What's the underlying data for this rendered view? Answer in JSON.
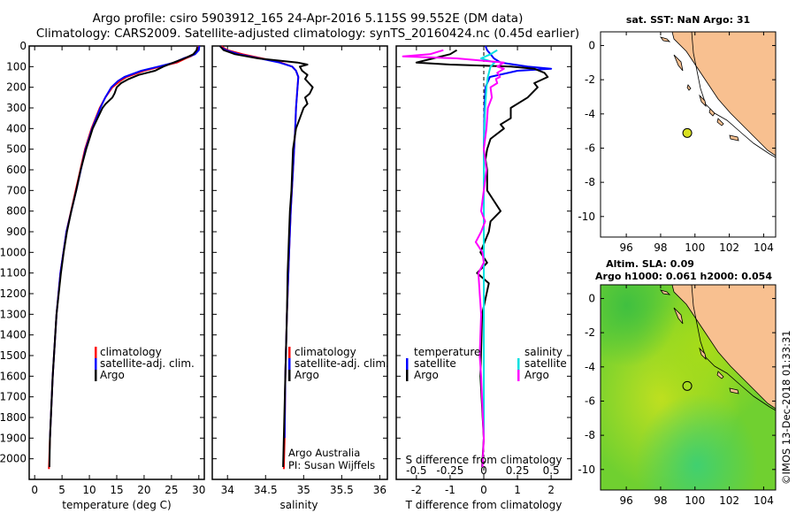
{
  "header": {
    "line1": "Argo profile: csiro 5903912_165 24-Apr-2016 5.115S 99.552E (DM data)",
    "line2": "Climatology: CARS2009. Satellite-adjusted climatology: synTS_20160424.nc (0.45d earlier)"
  },
  "depth_ticks": [
    "0",
    "100",
    "200",
    "300",
    "400",
    "500",
    "600",
    "700",
    "800",
    "900",
    "1000",
    "1100",
    "1200",
    "1300",
    "1400",
    "1500",
    "1600",
    "1700",
    "1800",
    "1900",
    "2000"
  ],
  "legend": {
    "climatology": "climatology",
    "satellite_adj": "satellite-adj. clim.",
    "argo": "Argo",
    "temperature": "temperature",
    "salinity": "salinity",
    "satellite": "satellite"
  },
  "credits": {
    "line1": "Argo Australia",
    "line2": "PI: Susan Wijffels"
  },
  "colors": {
    "climatology": "#ff0000",
    "satellite": "#0000ff",
    "argo": "#000000",
    "sal_sat": "#00e0e0",
    "sal_argo": "#ff00ff",
    "land": "#f8c090",
    "marker": "#d8e020"
  },
  "chart_data": [
    {
      "type": "line",
      "title": "",
      "xlabel": "temperature (deg C)",
      "ylabel": "",
      "xticks": [
        "0",
        "5",
        "10",
        "15",
        "20",
        "25",
        "30"
      ],
      "xlim": [
        -1,
        31
      ],
      "ylim": [
        2100,
        0
      ],
      "series": [
        {
          "name": "climatology",
          "depth": [
            2050,
            1900,
            1600,
            1300,
            1100,
            900,
            700,
            500,
            400,
            300,
            250,
            200,
            170,
            150,
            120,
            100,
            80,
            60,
            50,
            40,
            20,
            0
          ],
          "values": [
            2.6,
            2.8,
            3.3,
            4.0,
            4.7,
            5.8,
            7.5,
            9.2,
            10.4,
            11.9,
            12.9,
            14.2,
            15.6,
            16.8,
            20.0,
            23.0,
            26.0,
            27.6,
            28.5,
            29.2,
            29.8,
            30.0
          ]
        },
        {
          "name": "satellite-adj. clim.",
          "depth": [
            1900,
            1600,
            1300,
            1100,
            900,
            700,
            500,
            400,
            300,
            250,
            200,
            170,
            150,
            120,
            100,
            80,
            60,
            50,
            40,
            20,
            0
          ],
          "values": [
            2.8,
            3.3,
            4.0,
            4.7,
            5.8,
            7.6,
            9.3,
            10.5,
            12.0,
            12.9,
            14.0,
            15.2,
            16.4,
            19.5,
            22.6,
            25.5,
            27.2,
            28.3,
            29.3,
            30.0,
            30.1
          ]
        },
        {
          "name": "Argo",
          "depth": [
            2040,
            1900,
            1600,
            1300,
            1100,
            1000,
            900,
            800,
            700,
            600,
            500,
            400,
            350,
            300,
            280,
            250,
            230,
            200,
            180,
            160,
            140,
            120,
            100,
            80,
            60,
            40,
            20,
            5
          ],
          "values": [
            2.7,
            2.8,
            3.3,
            4.0,
            4.8,
            5.3,
            5.9,
            6.7,
            7.6,
            8.4,
            9.4,
            10.6,
            11.5,
            12.4,
            13.0,
            14.2,
            14.6,
            15.0,
            15.8,
            17.2,
            19.0,
            22.0,
            23.5,
            25.4,
            27.4,
            29.0,
            29.6,
            29.7
          ]
        }
      ]
    },
    {
      "type": "line",
      "title": "",
      "xlabel": "salinity",
      "ylabel": "",
      "xticks": [
        "34",
        "34.5",
        "35",
        "35.5",
        "36"
      ],
      "xlim": [
        33.8,
        36.1
      ],
      "ylim": [
        2100,
        0
      ],
      "series": [
        {
          "name": "climatology",
          "depth": [
            2050,
            1900,
            1600,
            1300,
            1000,
            800,
            600,
            400,
            300,
            200,
            150,
            120,
            100,
            80,
            60,
            40,
            20,
            10,
            0
          ],
          "values": [
            34.74,
            34.75,
            34.76,
            34.78,
            34.81,
            34.83,
            34.86,
            34.89,
            34.9,
            34.92,
            34.93,
            34.9,
            34.85,
            34.7,
            34.45,
            34.2,
            34.0,
            33.95,
            33.92
          ]
        },
        {
          "name": "satellite-adj. clim.",
          "depth": [
            1900,
            1600,
            1300,
            1000,
            800,
            600,
            400,
            300,
            200,
            150,
            120,
            100,
            80,
            60,
            40,
            20,
            10,
            0
          ],
          "values": [
            34.75,
            34.76,
            34.78,
            34.81,
            34.83,
            34.86,
            34.89,
            34.9,
            34.92,
            34.93,
            34.9,
            34.85,
            34.68,
            34.42,
            34.15,
            33.98,
            33.93,
            33.9
          ]
        },
        {
          "name": "Argo",
          "depth": [
            2040,
            1900,
            1600,
            1300,
            1100,
            1000,
            900,
            800,
            700,
            600,
            500,
            400,
            350,
            300,
            280,
            250,
            230,
            200,
            180,
            160,
            140,
            120,
            100,
            90,
            80,
            60,
            40,
            20,
            0
          ],
          "values": [
            34.73,
            34.74,
            34.76,
            34.78,
            34.79,
            34.8,
            34.81,
            34.82,
            34.84,
            34.85,
            34.86,
            34.9,
            34.95,
            35.0,
            35.05,
            35.02,
            35.08,
            35.12,
            35.07,
            35.02,
            35.05,
            34.98,
            34.95,
            35.05,
            34.92,
            34.4,
            34.1,
            33.95,
            33.9
          ]
        }
      ]
    },
    {
      "type": "line",
      "title": "",
      "xlabel": "T difference from climatology",
      "ylabel": "",
      "xticks": [
        "-2",
        "-1",
        "0",
        "1",
        "2"
      ],
      "xlim": [
        -2.6,
        2.6
      ],
      "ylim": [
        2100,
        0
      ],
      "secondary_xlabel": "S difference from climatology",
      "secondary_xticks": [
        "-0.5",
        "-0.25",
        "0",
        "0.25",
        "0.5"
      ],
      "series": [
        {
          "name": "temperature satellite",
          "depth": [
            1900,
            1500,
            1000,
            500,
            300,
            200,
            150,
            120,
            110,
            100,
            90,
            80,
            60,
            40,
            20,
            0
          ],
          "values": [
            0.0,
            0.0,
            0.0,
            0.0,
            0.02,
            0.05,
            0.18,
            1.0,
            2.0,
            1.3,
            0.9,
            0.5,
            0.3,
            0.2,
            0.1,
            0.05
          ]
        },
        {
          "name": "temperature Argo",
          "depth": [
            2040,
            1900,
            1600,
            1300,
            1150,
            1100,
            1050,
            1000,
            900,
            850,
            800,
            750,
            700,
            600,
            550,
            500,
            450,
            400,
            380,
            350,
            300,
            250,
            200,
            180,
            150,
            130,
            110,
            100,
            90,
            80,
            60,
            40,
            20
          ],
          "values": [
            -0.05,
            0.0,
            -0.1,
            -0.05,
            0.15,
            -0.2,
            0.1,
            -0.1,
            0.15,
            0.2,
            0.5,
            0.3,
            0.1,
            0.1,
            0.05,
            0.1,
            0.2,
            0.6,
            0.5,
            0.8,
            0.8,
            1.3,
            1.6,
            1.5,
            1.9,
            1.8,
            1.5,
            0.8,
            -1.0,
            -2.0,
            -1.5,
            -1.0,
            -0.8
          ]
        },
        {
          "name": "salinity satellite",
          "depth": [
            1900,
            1500,
            1000,
            500,
            300,
            200,
            150,
            100,
            80,
            60,
            40,
            20
          ],
          "values": [
            0.0,
            0.0,
            0.0,
            0.0,
            0.01,
            0.02,
            0.03,
            0.05,
            0.08,
            -0.02,
            0.05,
            0.1
          ]
        },
        {
          "name": "salinity Argo",
          "depth": [
            2040,
            1900,
            1600,
            1500,
            1300,
            1200,
            1100,
            1050,
            1000,
            950,
            900,
            850,
            800,
            700,
            600,
            500,
            400,
            300,
            250,
            200,
            180,
            160,
            150,
            130,
            110,
            100,
            80,
            60,
            50,
            40,
            20
          ],
          "values": [
            -0.01,
            0.0,
            -0.02,
            -0.03,
            -0.02,
            -0.03,
            -0.04,
            0.0,
            -0.01,
            -0.06,
            -0.02,
            0.01,
            -0.02,
            0.0,
            0.02,
            0.0,
            0.02,
            0.03,
            0.06,
            0.05,
            0.1,
            0.09,
            0.12,
            0.1,
            0.15,
            0.1,
            0.15,
            -0.2,
            -0.6,
            -0.4,
            -0.3
          ]
        }
      ]
    },
    {
      "type": "scatter",
      "title": "sat. SST: NaN Argo: 31",
      "xlabel": "",
      "ylabel": "",
      "xticks": [
        "96",
        "98",
        "100",
        "102",
        "104"
      ],
      "yticks": [
        "0",
        "-2",
        "-4",
        "-6",
        "-8",
        "-10"
      ],
      "xlim": [
        94.5,
        104.7
      ],
      "ylim": [
        -11.2,
        0.8
      ],
      "series": [
        {
          "name": "Argo float",
          "x": [
            99.552
          ],
          "y": [
            -5.115
          ]
        }
      ]
    },
    {
      "type": "heatmap",
      "title": "Altim. SLA: 0.09",
      "subtitle": "Argo h1000: 0.061 h2000: 0.054",
      "xlabel": "",
      "ylabel": "",
      "xticks": [
        "96",
        "98",
        "100",
        "102",
        "104"
      ],
      "yticks": [
        "0",
        "-2",
        "-4",
        "-6",
        "-8",
        "-10"
      ],
      "xlim": [
        94.5,
        104.7
      ],
      "ylim": [
        -11.2,
        0.8
      ],
      "series": [
        {
          "name": "Argo float",
          "x": [
            99.552
          ],
          "y": [
            -5.115
          ]
        }
      ],
      "annotation": "©IMOS 13-Dec-2018 01:33:31"
    }
  ]
}
